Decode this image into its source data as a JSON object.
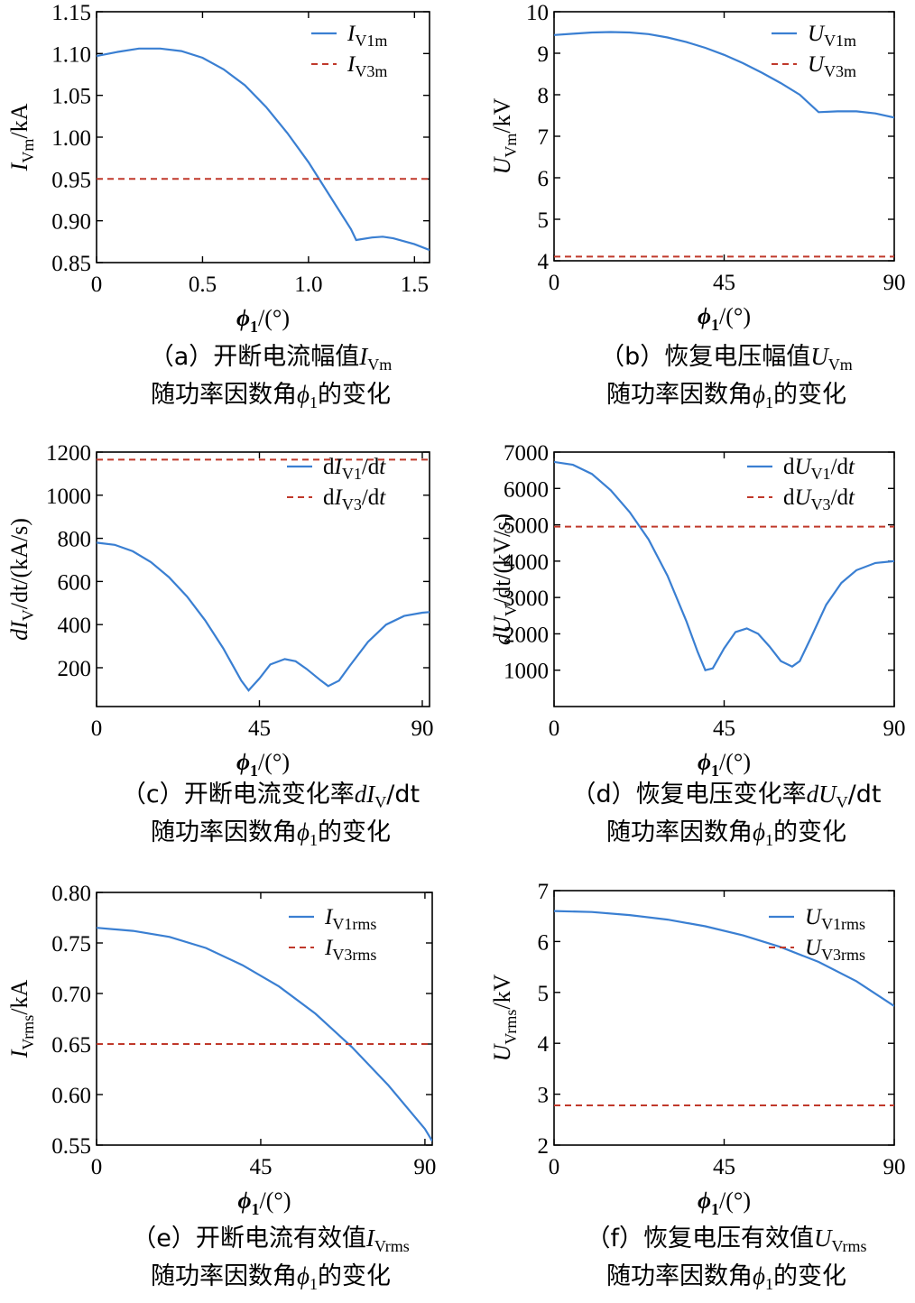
{
  "colors": {
    "series1": "#3a7fd2",
    "series2": "#c0392b"
  },
  "chart_data": [
    {
      "id": "a",
      "type": "line",
      "xlim": [
        0,
        1.571
      ],
      "ylim": [
        0.85,
        1.15
      ],
      "xticks": [
        "0",
        "0.5",
        "1.0",
        "1.5"
      ],
      "xtick_values": [
        0,
        0.5,
        1.0,
        1.5
      ],
      "yticks": [
        "0.85",
        "0.90",
        "0.95",
        "1.00",
        "1.05",
        "1.10",
        "1.15"
      ],
      "ytick_values": [
        0.85,
        0.9,
        0.95,
        1.0,
        1.05,
        1.1,
        1.15
      ],
      "xlabel": {
        "main": "ϕ",
        "sub": "1",
        "rest": "/(°)"
      },
      "ylabel": {
        "main": "I",
        "sub": "Vm",
        "rest": "/kA"
      },
      "legend": [
        {
          "main": "I",
          "sub": "V1m"
        },
        {
          "main": "I",
          "sub": "V3m"
        }
      ],
      "series": [
        {
          "name": "I_V1m",
          "x": [
            0,
            0.1,
            0.2,
            0.3,
            0.4,
            0.5,
            0.6,
            0.7,
            0.8,
            0.9,
            1.0,
            1.1,
            1.2,
            1.225,
            1.3,
            1.35,
            1.4,
            1.5,
            1.571
          ],
          "y": [
            1.097,
            1.102,
            1.106,
            1.106,
            1.103,
            1.095,
            1.081,
            1.062,
            1.036,
            1.005,
            0.97,
            0.93,
            0.89,
            0.877,
            0.88,
            0.881,
            0.879,
            0.872,
            0.865
          ]
        },
        {
          "name": "I_V3m",
          "x": [
            0,
            1.571
          ],
          "y": [
            0.95,
            0.95
          ]
        }
      ],
      "caption": [
        {
          "pre": "（a）开断电流幅值",
          "main": "I",
          "sub": "Vm"
        },
        {
          "pre": "随功率因数角",
          "main": "ϕ",
          "sub": "1",
          "post": "的变化"
        }
      ]
    },
    {
      "id": "b",
      "type": "line",
      "xlim": [
        0,
        90
      ],
      "ylim": [
        4,
        10
      ],
      "xticks": [
        "0",
        "45",
        "90"
      ],
      "xtick_values": [
        0,
        45,
        90
      ],
      "yticks": [
        "4",
        "5",
        "6",
        "7",
        "8",
        "9",
        "10"
      ],
      "ytick_values": [
        4,
        5,
        6,
        7,
        8,
        9,
        10
      ],
      "xlabel": {
        "main": "ϕ",
        "sub": "1",
        "rest": "/(°)"
      },
      "ylabel": {
        "main": "U",
        "sub": "Vm",
        "rest": "/kV"
      },
      "legend": [
        {
          "main": "U",
          "sub": "V1m"
        },
        {
          "main": "U",
          "sub": "V3m"
        }
      ],
      "series": [
        {
          "name": "U_V1m",
          "x": [
            0,
            5,
            10,
            15,
            20,
            25,
            30,
            35,
            40,
            45,
            50,
            55,
            60,
            65,
            70,
            75,
            80,
            85,
            90
          ],
          "y": [
            9.44,
            9.47,
            9.5,
            9.51,
            9.5,
            9.46,
            9.38,
            9.27,
            9.13,
            8.96,
            8.76,
            8.53,
            8.28,
            8.0,
            7.58,
            7.6,
            7.6,
            7.55,
            7.45
          ]
        },
        {
          "name": "U_V3m",
          "x": [
            0,
            90
          ],
          "y": [
            4.1,
            4.1
          ]
        }
      ],
      "caption": [
        {
          "pre": "（b）恢复电压幅值",
          "main": "U",
          "sub": "Vm"
        },
        {
          "pre": "随功率因数角",
          "main": "ϕ",
          "sub": "1",
          "post": "的变化"
        }
      ]
    },
    {
      "id": "c",
      "type": "line",
      "xlim": [
        0,
        92
      ],
      "ylim": [
        20,
        1200
      ],
      "xticks": [
        "0",
        "45",
        "90"
      ],
      "xtick_values": [
        0,
        45,
        90
      ],
      "yticks": [
        "200",
        "400",
        "600",
        "800",
        "1000",
        "1200"
      ],
      "ytick_values": [
        200,
        400,
        600,
        800,
        1000,
        1200
      ],
      "xlabel": {
        "main": "ϕ",
        "sub": "1",
        "rest": "/(°)"
      },
      "ylabel": {
        "main": "dI",
        "sub": "V",
        "rest": "/dt/(kA/s)"
      },
      "legend": [
        {
          "pre": "d",
          "main": "I",
          "sub": "V1",
          "rest": "/d",
          "tail": "t"
        },
        {
          "pre": "d",
          "main": "I",
          "sub": "V3",
          "rest": "/d",
          "tail": "t"
        }
      ],
      "series": [
        {
          "name": "dI_V1/dt",
          "x": [
            0,
            5,
            10,
            15,
            20,
            25,
            30,
            35,
            40,
            42,
            45,
            48,
            52,
            55,
            58,
            62,
            64,
            67,
            70,
            75,
            80,
            85,
            90,
            92
          ],
          "y": [
            780,
            770,
            740,
            690,
            620,
            530,
            420,
            290,
            140,
            95,
            150,
            215,
            240,
            230,
            195,
            140,
            115,
            140,
            210,
            320,
            400,
            440,
            455,
            458
          ]
        },
        {
          "name": "dI_V3/dt",
          "x": [
            0,
            92
          ],
          "y": [
            1165,
            1165
          ]
        }
      ],
      "caption": [
        {
          "pre": "（c）开断电流变化率",
          "main": "dI",
          "sub": "V",
          "post": "/dt"
        },
        {
          "pre": "随功率因数角",
          "main": "ϕ",
          "sub": "1",
          "post": "的变化"
        }
      ]
    },
    {
      "id": "d",
      "type": "line",
      "xlim": [
        0,
        90
      ],
      "ylim": [
        0,
        7000
      ],
      "xticks": [
        "0",
        "45",
        "90"
      ],
      "xtick_values": [
        0,
        45,
        90
      ],
      "yticks": [
        "1000",
        "2000",
        "3000",
        "4000",
        "5000",
        "6000",
        "7000"
      ],
      "ytick_values": [
        1000,
        2000,
        3000,
        4000,
        5000,
        6000,
        7000
      ],
      "xlabel": {
        "main": "ϕ",
        "sub": "1",
        "rest": "/(°)"
      },
      "ylabel": {
        "main": "dU",
        "sub": "V",
        "rest": "/dt/(kV/s)"
      },
      "legend": [
        {
          "pre": "d",
          "main": "U",
          "sub": "V1",
          "rest": "/d",
          "tail": "t"
        },
        {
          "pre": "d",
          "main": "U",
          "sub": "V3",
          "rest": "/d",
          "tail": "t"
        }
      ],
      "series": [
        {
          "name": "dU_V1/dt",
          "x": [
            0,
            5,
            10,
            15,
            20,
            25,
            30,
            35,
            38,
            40,
            42,
            45,
            48,
            51,
            54,
            57,
            60,
            63,
            65,
            68,
            72,
            76,
            80,
            85,
            90
          ],
          "y": [
            6730,
            6650,
            6400,
            5950,
            5350,
            4600,
            3600,
            2350,
            1500,
            1000,
            1050,
            1600,
            2050,
            2150,
            2000,
            1650,
            1250,
            1100,
            1250,
            1900,
            2800,
            3400,
            3750,
            3950,
            4000
          ]
        },
        {
          "name": "dU_V3/dt",
          "x": [
            0,
            90
          ],
          "y": [
            4950,
            4950
          ]
        }
      ],
      "caption": [
        {
          "pre": "（d）恢复电压变化率",
          "main": "dU",
          "sub": "V",
          "post": "/dt"
        },
        {
          "pre": "随功率因数角",
          "main": "ϕ",
          "sub": "1",
          "post": "的变化"
        }
      ]
    },
    {
      "id": "e",
      "type": "line",
      "xlim": [
        0,
        92
      ],
      "ylim": [
        0.55,
        0.8
      ],
      "xticks": [
        "0",
        "45",
        "90"
      ],
      "xtick_values": [
        0,
        45,
        90
      ],
      "yticks": [
        "0.55",
        "0.60",
        "0.65",
        "0.70",
        "0.75",
        "0.80"
      ],
      "ytick_values": [
        0.55,
        0.6,
        0.65,
        0.7,
        0.75,
        0.8
      ],
      "xlabel": {
        "main": "ϕ",
        "sub": "1",
        "rest": "/(°)"
      },
      "ylabel": {
        "main": "I",
        "sub": "Vrms",
        "rest": "/kA"
      },
      "legend": [
        {
          "main": "I",
          "sub": "V1rms"
        },
        {
          "main": "I",
          "sub": "V3rms"
        }
      ],
      "series": [
        {
          "name": "I_V1rms",
          "x": [
            0,
            10,
            20,
            30,
            40,
            50,
            60,
            70,
            80,
            90,
            92
          ],
          "y": [
            0.765,
            0.762,
            0.756,
            0.745,
            0.728,
            0.707,
            0.68,
            0.647,
            0.609,
            0.566,
            0.554
          ]
        },
        {
          "name": "I_V3rms",
          "x": [
            0,
            92
          ],
          "y": [
            0.65,
            0.65
          ]
        }
      ],
      "caption": [
        {
          "pre": "（e）开断电流有效值",
          "main": "I",
          "sub": "Vrms"
        },
        {
          "pre": "随功率因数角",
          "main": "ϕ",
          "sub": "1",
          "post": "的变化"
        }
      ]
    },
    {
      "id": "f",
      "type": "line",
      "xlim": [
        0,
        90
      ],
      "ylim": [
        2,
        7
      ],
      "xticks": [
        "0",
        "45",
        "90"
      ],
      "xtick_values": [
        0,
        45,
        90
      ],
      "yticks": [
        "2",
        "3",
        "4",
        "5",
        "6",
        "7"
      ],
      "ytick_values": [
        2,
        3,
        4,
        5,
        6,
        7
      ],
      "xlabel": {
        "main": "ϕ",
        "sub": "1",
        "rest": "/(°)"
      },
      "ylabel": {
        "main": "U",
        "sub": "Vrms",
        "rest": "/kV"
      },
      "legend": [
        {
          "main": "U",
          "sub": "V1rms"
        },
        {
          "main": "U",
          "sub": "V3rms"
        }
      ],
      "series": [
        {
          "name": "U_V1rms",
          "x": [
            0,
            10,
            20,
            30,
            40,
            50,
            60,
            70,
            80,
            90
          ],
          "y": [
            6.6,
            6.58,
            6.52,
            6.43,
            6.3,
            6.12,
            5.89,
            5.6,
            5.22,
            4.73
          ]
        },
        {
          "name": "U_V3rms",
          "x": [
            0,
            90
          ],
          "y": [
            2.78,
            2.78
          ]
        }
      ],
      "caption": [
        {
          "pre": "（f）恢复电压有效值",
          "main": "U",
          "sub": "Vrms"
        },
        {
          "pre": "随功率因数角",
          "main": "ϕ",
          "sub": "1",
          "post": "的变化"
        }
      ]
    }
  ]
}
